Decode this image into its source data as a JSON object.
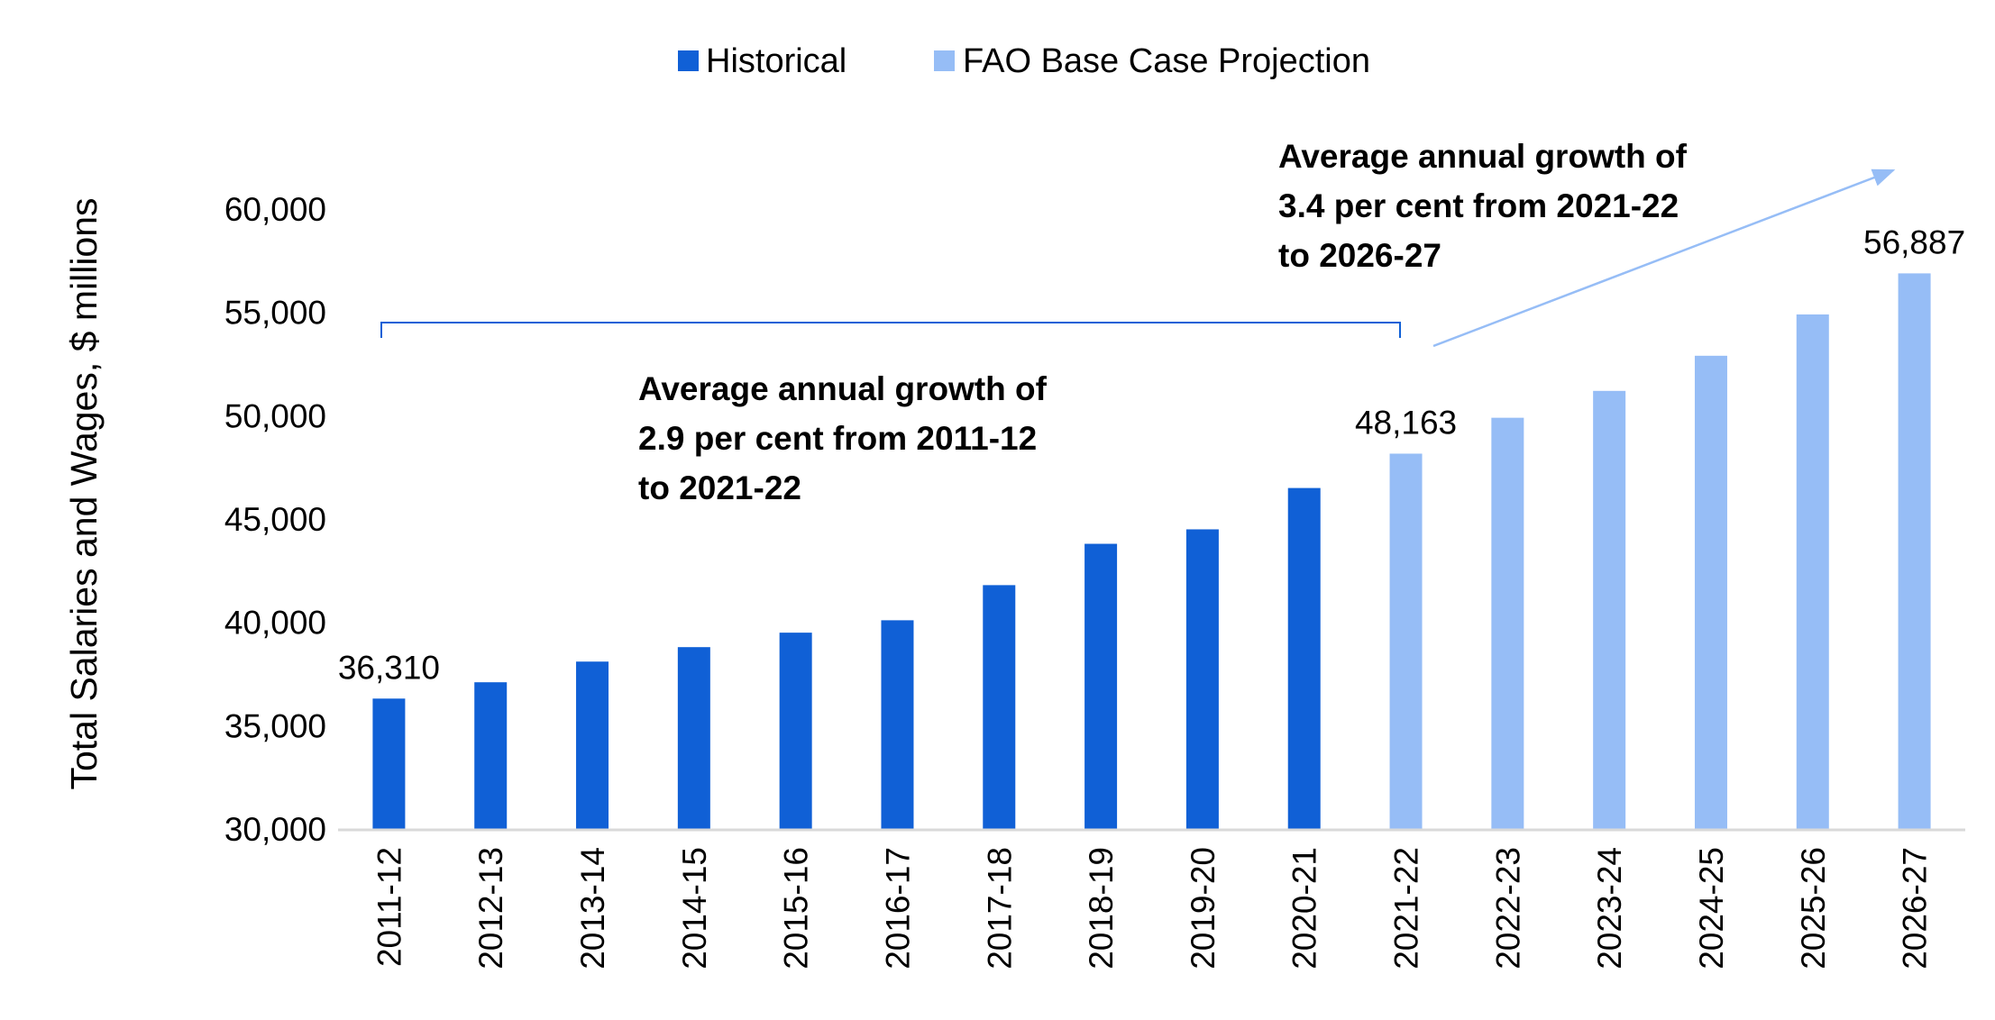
{
  "chart_data": {
    "type": "bar",
    "title": "",
    "xlabel": "",
    "ylabel": "Total Salaries and Wages, $ millions",
    "ylim": [
      30000,
      60000
    ],
    "yticks": [
      30000,
      35000,
      40000,
      45000,
      50000,
      55000,
      60000
    ],
    "ytick_labels": [
      "30,000",
      "35,000",
      "40,000",
      "45,000",
      "50,000",
      "55,000",
      "60,000"
    ],
    "categories": [
      "2011-12",
      "2012-13",
      "2013-14",
      "2014-15",
      "2015-16",
      "2016-17",
      "2017-18",
      "2018-19",
      "2019-20",
      "2020-21",
      "2021-22",
      "2022-23",
      "2023-24",
      "2024-25",
      "2025-26",
      "2026-27"
    ],
    "values": [
      36310,
      37100,
      38100,
      38800,
      39500,
      40100,
      41800,
      43800,
      44500,
      46500,
      48163,
      49900,
      51200,
      52900,
      54900,
      56887
    ],
    "series": [
      {
        "name": "Historical",
        "color": "#1060d6",
        "from_index": 0,
        "to_index": 9
      },
      {
        "name": "FAO Base Case Projection",
        "color": "#96bdf6",
        "from_index": 10,
        "to_index": 15
      }
    ],
    "grid": false,
    "legend_position": "top-center",
    "data_labels": [
      {
        "category": "2011-12",
        "text": "36,310"
      },
      {
        "category": "2021-22",
        "text": "48,163"
      },
      {
        "category": "2026-27",
        "text": "56,887"
      }
    ],
    "annotations": [
      {
        "name": "historical-growth-annotation",
        "lines": [
          "Average annual growth of",
          "2.9 per cent from 2011-12",
          "to 2021-22"
        ],
        "span_from": "2011-12",
        "span_to": "2021-22",
        "marker": "bracket"
      },
      {
        "name": "projection-growth-annotation",
        "lines": [
          "Average annual growth of",
          "3.4 per cent from 2021-22",
          "to 2026-27"
        ],
        "span_from": "2021-22",
        "span_to": "2026-27",
        "marker": "arrow"
      }
    ],
    "axis_color": "#d9d9d9",
    "bracket_color": "#1060d6",
    "arrow_color": "#96bdf6"
  }
}
